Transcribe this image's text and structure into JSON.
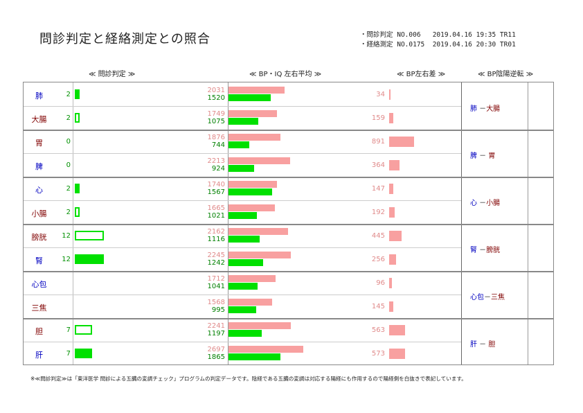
{
  "title": "問診判定と経絡測定との照合",
  "meta": {
    "line1": "・問診判定 NO.006   2019.04.16 19:35 TR11",
    "line2": "・経絡測定 NO.0175  2019.04.16 20:30 TR01"
  },
  "headers": {
    "monshin": "≪ 問診判定 ≫",
    "bp_avg": "≪ BP・IQ 左右平均 ≫",
    "bp_diff": "≪ BP左右差 ≫",
    "bp_rev": "≪ BP陰陽逆転 ≫"
  },
  "colors": {
    "pink": "#f8a0a0",
    "green": "#00e000",
    "yin": "#0000c0",
    "yang": "#800000"
  },
  "rows": [
    {
      "organ": "肺",
      "type": "yin",
      "score": "2",
      "score_val": 2,
      "bp": "2031",
      "iq": "1520",
      "diff": "34"
    },
    {
      "organ": "大腸",
      "type": "yang",
      "score": "2",
      "score_val": 2,
      "bp": "1749",
      "iq": "1075",
      "diff": "159"
    },
    {
      "organ": "胃",
      "type": "yang",
      "score": "0",
      "score_val": 0,
      "bp": "1876",
      "iq": "744",
      "diff": "891"
    },
    {
      "organ": "脾",
      "type": "yin",
      "score": "0",
      "score_val": 0,
      "bp": "2213",
      "iq": "924",
      "diff": "364"
    },
    {
      "organ": "心",
      "type": "yin",
      "score": "2",
      "score_val": 2,
      "bp": "1740",
      "iq": "1567",
      "diff": "147"
    },
    {
      "organ": "小腸",
      "type": "yang",
      "score": "2",
      "score_val": 2,
      "bp": "1665",
      "iq": "1021",
      "diff": "192"
    },
    {
      "organ": "膀胱",
      "type": "yang",
      "score": "12",
      "score_val": 12,
      "bp": "2162",
      "iq": "1116",
      "diff": "445"
    },
    {
      "organ": "腎",
      "type": "yin",
      "score": "12",
      "score_val": 12,
      "bp": "2245",
      "iq": "1242",
      "diff": "256"
    },
    {
      "organ": "心包",
      "type": "yin",
      "score": "",
      "score_val": 0,
      "bp": "1712",
      "iq": "1041",
      "diff": "96"
    },
    {
      "organ": "三焦",
      "type": "yang",
      "score": "",
      "score_val": 0,
      "bp": "1568",
      "iq": "995",
      "diff": "145"
    },
    {
      "organ": "胆",
      "type": "yang",
      "score": "7",
      "score_val": 7,
      "bp": "2241",
      "iq": "1197",
      "diff": "563"
    },
    {
      "organ": "肝",
      "type": "yin",
      "score": "7",
      "score_val": 7,
      "bp": "2697",
      "iq": "1865",
      "diff": "573"
    }
  ],
  "reversal": [
    {
      "yin": "肺",
      "yang": "大腸",
      "sep": " －"
    },
    {
      "yin": "脾",
      "yang": "胃",
      "sep": " － "
    },
    {
      "yin": "心",
      "yang": "小腸",
      "sep": " －"
    },
    {
      "yin": "腎",
      "yang": "膀胱",
      "sep": " －"
    },
    {
      "yin": "心包",
      "yang": "三焦",
      "sep": "－"
    },
    {
      "yin": "肝",
      "yang": "胆",
      "sep": " － "
    }
  ],
  "footnote": "※≪問診判定≫は「東洋医学 問診による五臓の変調チェック」プログラムの判定データです。陰経である五臓の変調は対応する陽経にも作用するので陽経側を白抜きで表記しています。"
}
